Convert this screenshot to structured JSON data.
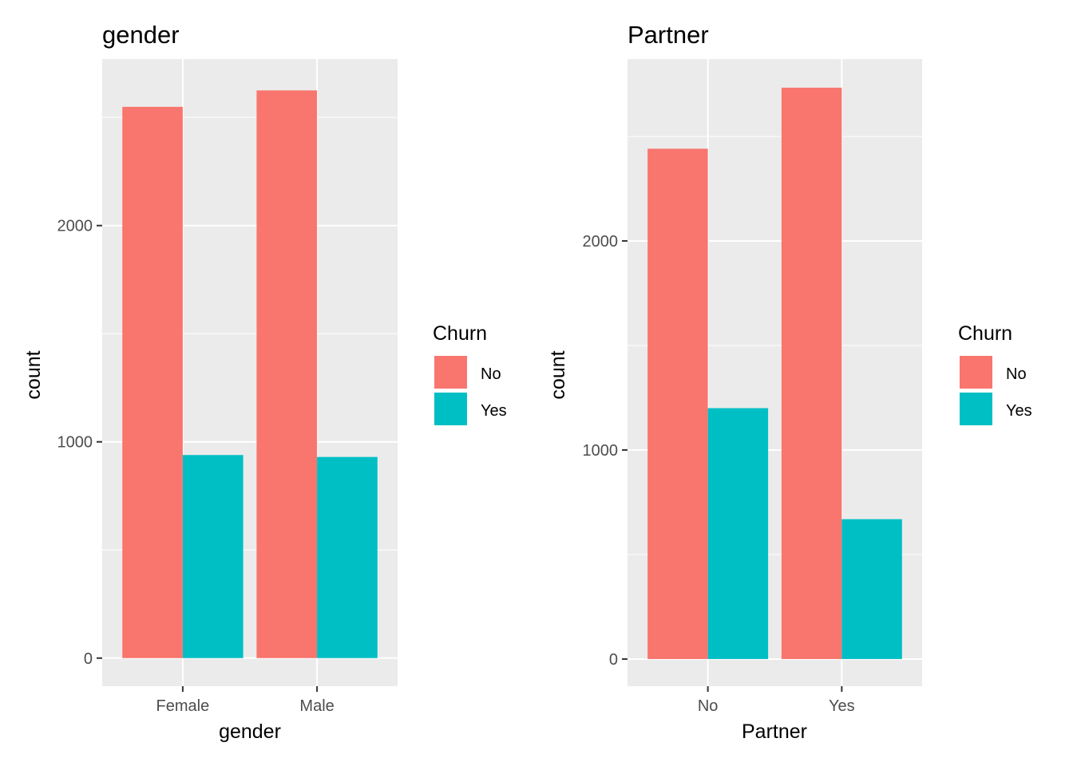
{
  "chart_data": [
    {
      "type": "bar",
      "title": "gender",
      "xlabel": "gender",
      "ylabel": "count",
      "categories": [
        "Female",
        "Male"
      ],
      "series": [
        {
          "name": "No",
          "values": [
            2549,
            2625
          ]
        },
        {
          "name": "Yes",
          "values": [
            939,
            930
          ]
        }
      ],
      "ylim": [
        -130,
        2770
      ],
      "yticks": [
        0,
        1000,
        2000
      ],
      "yticks_labels": [
        "0",
        "1000",
        "2000"
      ],
      "grid": true,
      "legend": {
        "title": "Churn",
        "placement": "right",
        "entries": [
          "No",
          "Yes"
        ]
      }
    },
    {
      "type": "bar",
      "title": "Partner",
      "xlabel": "Partner",
      "ylabel": "count",
      "categories": [
        "No",
        "Yes"
      ],
      "series": [
        {
          "name": "No",
          "values": [
            2441,
            2733
          ]
        },
        {
          "name": "Yes",
          "values": [
            1200,
            669
          ]
        }
      ],
      "ylim": [
        -130,
        2870
      ],
      "yticks": [
        0,
        1000,
        2000
      ],
      "yticks_labels": [
        "0",
        "1000",
        "2000"
      ],
      "grid": true,
      "legend": {
        "title": "Churn",
        "placement": "right",
        "entries": [
          "No",
          "Yes"
        ]
      }
    }
  ],
  "colors": {
    "No": "#F8766D",
    "Yes": "#00BFC4",
    "panel_bg": "#EBEBEB",
    "grid": "#FFFFFF"
  }
}
